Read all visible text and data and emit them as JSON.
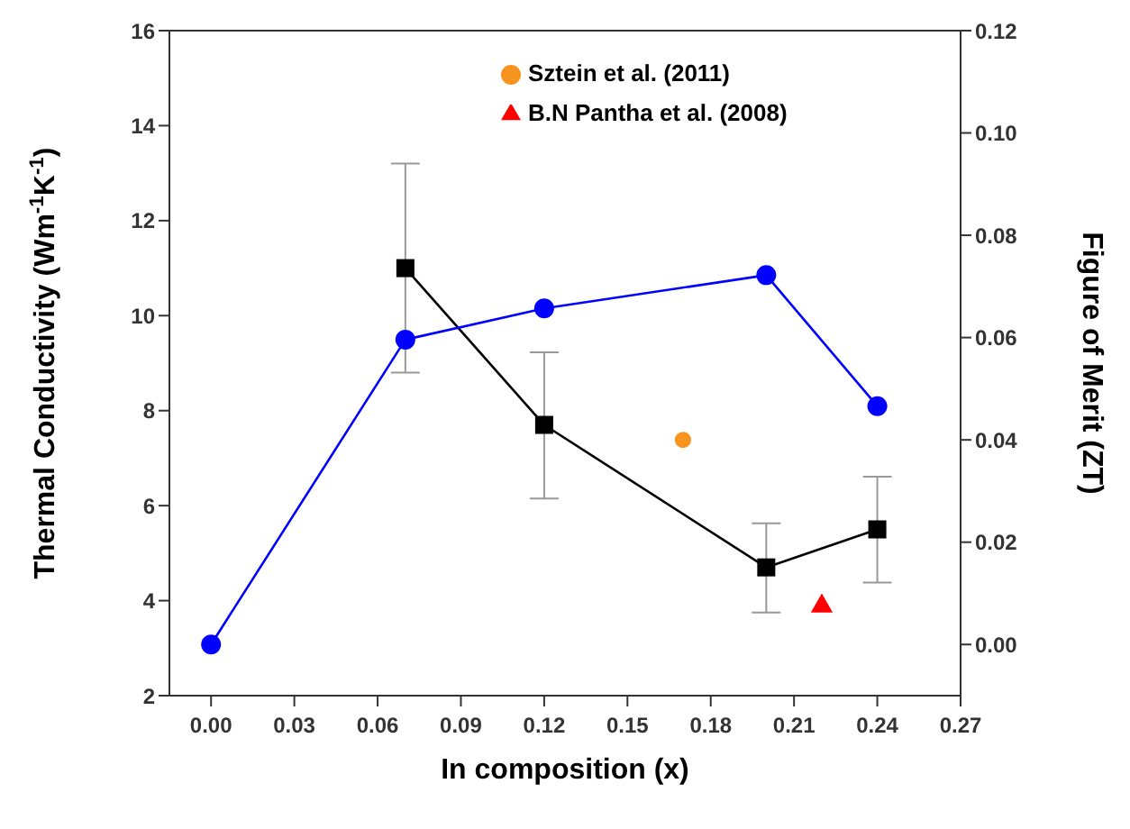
{
  "chart_data": {
    "type": "line",
    "xlabel": "In composition (x)",
    "ylabel": "Thermal Conductivity (Wm$^{-1}$K$^{-1}$)",
    "y2label": "Figure of Merit (ZT)",
    "xlim": [
      -0.015,
      0.27
    ],
    "xticks": [
      {
        "value": 0,
        "label": "0.00"
      },
      {
        "value": 0.03,
        "label": "0.03"
      },
      {
        "value": 0.06,
        "label": "0.06"
      },
      {
        "value": 0.09,
        "label": "0.09"
      },
      {
        "value": 0.12,
        "label": "0.12"
      },
      {
        "value": 0.15,
        "label": "0.15"
      },
      {
        "value": 0.18,
        "label": "0.18"
      },
      {
        "value": 0.21,
        "label": "0.21"
      },
      {
        "value": 0.24,
        "label": "0.24"
      },
      {
        "value": 0.27,
        "label": "0.27"
      }
    ],
    "ylim": [
      2,
      16
    ],
    "yticks": [
      2,
      4,
      6,
      8,
      10,
      12,
      14,
      16
    ],
    "y2lim": [
      -0.01,
      0.12
    ],
    "y2ticks": [
      {
        "value": 0,
        "label": "0.00"
      },
      {
        "value": 0.02,
        "label": "0.02"
      },
      {
        "value": 0.04,
        "label": "0.04"
      },
      {
        "value": 0.06,
        "label": "0.06"
      },
      {
        "value": 0.08,
        "label": "0.08"
      },
      {
        "value": 0.1,
        "label": "0.10"
      },
      {
        "value": 0.12,
        "label": "0.12"
      }
    ],
    "grid": false,
    "legend": "top",
    "series": [
      {
        "color": "#000000",
        "marker": "square",
        "x": [
          0.07,
          0.12,
          0.2,
          0.24
        ],
        "values": [
          11.0,
          7.7,
          4.7,
          5.5
        ],
        "errors": [
          [
            8.8,
            13.2
          ],
          [
            6.15,
            9.23
          ],
          [
            3.75,
            5.63
          ],
          [
            4.38,
            6.61
          ]
        ]
      },
      {
        "color": "#0000ff",
        "marker": "circle",
        "axis": "y2",
        "x": [
          0,
          0.07,
          0.12,
          0.2,
          0.24
        ],
        "values": [
          0.0,
          0.0596,
          0.0657,
          0.0722,
          0.0466
        ]
      },
      {
        "type": "scatter",
        "name": "Sztein et al. (2011)",
        "color": "#f7941d",
        "marker": "circle",
        "axis": "y2",
        "x": [
          0.17
        ],
        "values": [
          0.04
        ]
      },
      {
        "type": "scatter",
        "name": "B.N Pantha et al. (2008)",
        "color": "#ff0000",
        "marker": "triangle",
        "axis": "y2",
        "x": [
          0.22
        ],
        "values": [
          0.0075
        ]
      }
    ]
  }
}
